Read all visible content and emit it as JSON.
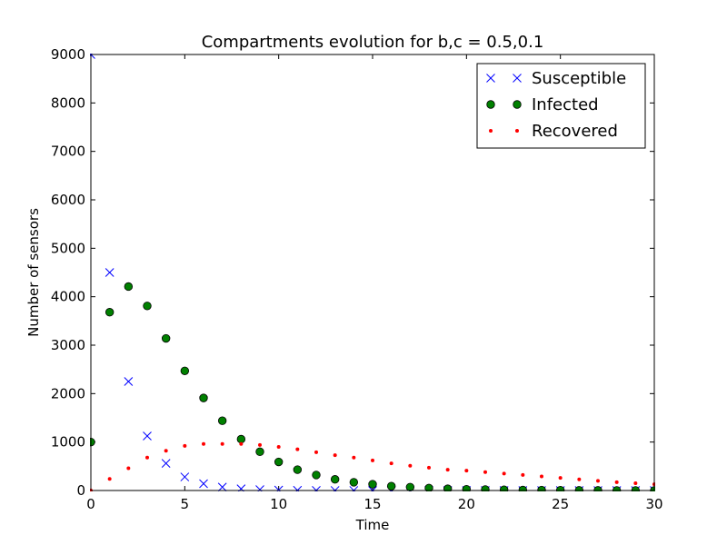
{
  "chart_data": {
    "type": "scatter",
    "title": "Compartments evolution for b,c = 0.5,0.1",
    "xlabel": "Time",
    "ylabel": "Number of sensors",
    "xlim": [
      0,
      30
    ],
    "ylim": [
      0,
      9000
    ],
    "xticks": [
      "0",
      "5",
      "10",
      "15",
      "20",
      "25",
      "30"
    ],
    "yticks": [
      "0",
      "1000",
      "2000",
      "3000",
      "4000",
      "5000",
      "6000",
      "7000",
      "8000",
      "9000"
    ],
    "grid": false,
    "legend_position": "top-right",
    "x": [
      0,
      1,
      2,
      3,
      4,
      5,
      6,
      7,
      8,
      9,
      10,
      11,
      12,
      13,
      14,
      15,
      16,
      17,
      18,
      19,
      20,
      21,
      22,
      23,
      24,
      25,
      26,
      27,
      28,
      29,
      30
    ],
    "series": [
      {
        "name": "Susceptible",
        "marker": "x",
        "color": "#0000ff",
        "values": [
          9000,
          4500,
          2250,
          1125,
          560,
          280,
          140,
          70,
          35,
          18,
          9,
          4,
          2,
          1,
          1,
          0,
          0,
          0,
          0,
          0,
          0,
          0,
          0,
          0,
          0,
          0,
          0,
          0,
          0,
          0,
          0
        ]
      },
      {
        "name": "Infected",
        "marker": "circle",
        "color": "#008000",
        "values": [
          1000,
          3680,
          4210,
          3810,
          3140,
          2470,
          1910,
          1440,
          1060,
          800,
          590,
          430,
          320,
          230,
          170,
          130,
          90,
          70,
          50,
          35,
          25,
          20,
          15,
          10,
          8,
          6,
          4,
          3,
          2,
          2,
          1
        ]
      },
      {
        "name": "Recovered",
        "marker": "dot",
        "color": "#ff0000",
        "values": [
          0,
          240,
          460,
          680,
          820,
          920,
          960,
          960,
          960,
          940,
          900,
          850,
          790,
          730,
          680,
          620,
          560,
          510,
          470,
          430,
          410,
          380,
          350,
          320,
          290,
          260,
          230,
          200,
          170,
          150,
          130
        ]
      }
    ]
  }
}
